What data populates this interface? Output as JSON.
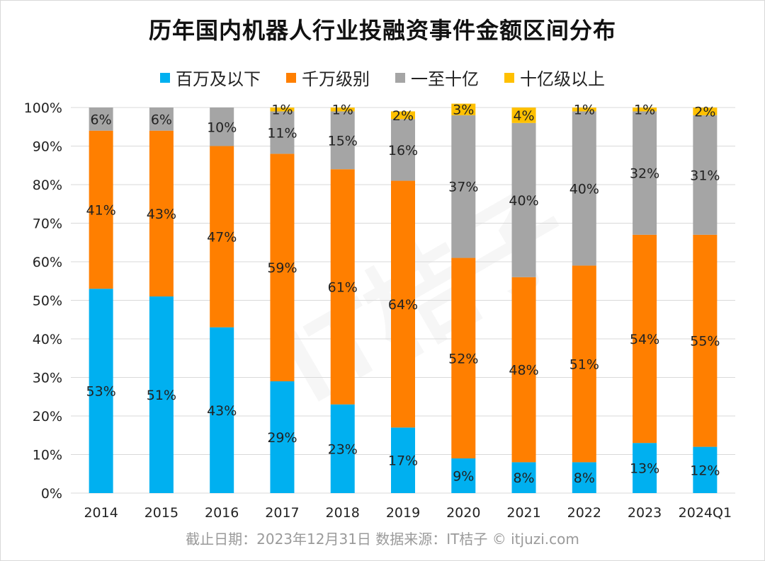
{
  "title": "历年国内机器人行业投融资事件金额区间分布",
  "footnote": "截止日期：2023年12月31日    数据来源：IT桔子 © itjuzi.com",
  "watermark": "IT桔子",
  "colors": {
    "series1": "#00b0f0",
    "series2": "#ff7f00",
    "series3": "#a5a5a5",
    "series4": "#ffc000",
    "grid": "#d9d9d9",
    "axis_text": "#222222"
  },
  "chart_data": {
    "type": "bar",
    "stacked": true,
    "categories": [
      "2014",
      "2015",
      "2016",
      "2017",
      "2018",
      "2019",
      "2020",
      "2021",
      "2022",
      "2023",
      "2024Q1"
    ],
    "ylim": [
      0,
      100
    ],
    "yticks": [
      "0%",
      "10%",
      "20%",
      "30%",
      "40%",
      "50%",
      "60%",
      "70%",
      "80%",
      "90%",
      "100%"
    ],
    "legend_position": "top",
    "grid": true,
    "series": [
      {
        "name": "百万及以下",
        "color": "#00b0f0",
        "values": [
          53,
          51,
          43,
          29,
          23,
          17,
          9,
          8,
          8,
          13,
          12
        ],
        "labels": [
          "53%",
          "51%",
          "43%",
          "29%",
          "23%",
          "17%",
          "9%",
          "8%",
          "8%",
          "13%",
          "12%"
        ]
      },
      {
        "name": "千万级别",
        "color": "#ff7f00",
        "values": [
          41,
          43,
          47,
          59,
          61,
          64,
          52,
          48,
          51,
          54,
          55
        ],
        "labels": [
          "41%",
          "43%",
          "47%",
          "59%",
          "61%",
          "64%",
          "52%",
          "48%",
          "51%",
          "54%",
          "55%"
        ]
      },
      {
        "name": "一至十亿",
        "color": "#a5a5a5",
        "values": [
          6,
          6,
          10,
          11,
          15,
          16,
          37,
          40,
          40,
          32,
          31
        ],
        "labels": [
          "6%",
          "6%",
          "10%",
          "11%",
          "15%",
          "16%",
          "37%",
          "40%",
          "40%",
          "32%",
          "31%"
        ]
      },
      {
        "name": "十亿级以上",
        "color": "#ffc000",
        "values": [
          0,
          0,
          0,
          1,
          1,
          2,
          3,
          4,
          1,
          1,
          2
        ],
        "labels": [
          "",
          "",
          "",
          "1%",
          "1%",
          "2%",
          "3%",
          "4%",
          "1%",
          "1%",
          "2%"
        ]
      }
    ]
  }
}
